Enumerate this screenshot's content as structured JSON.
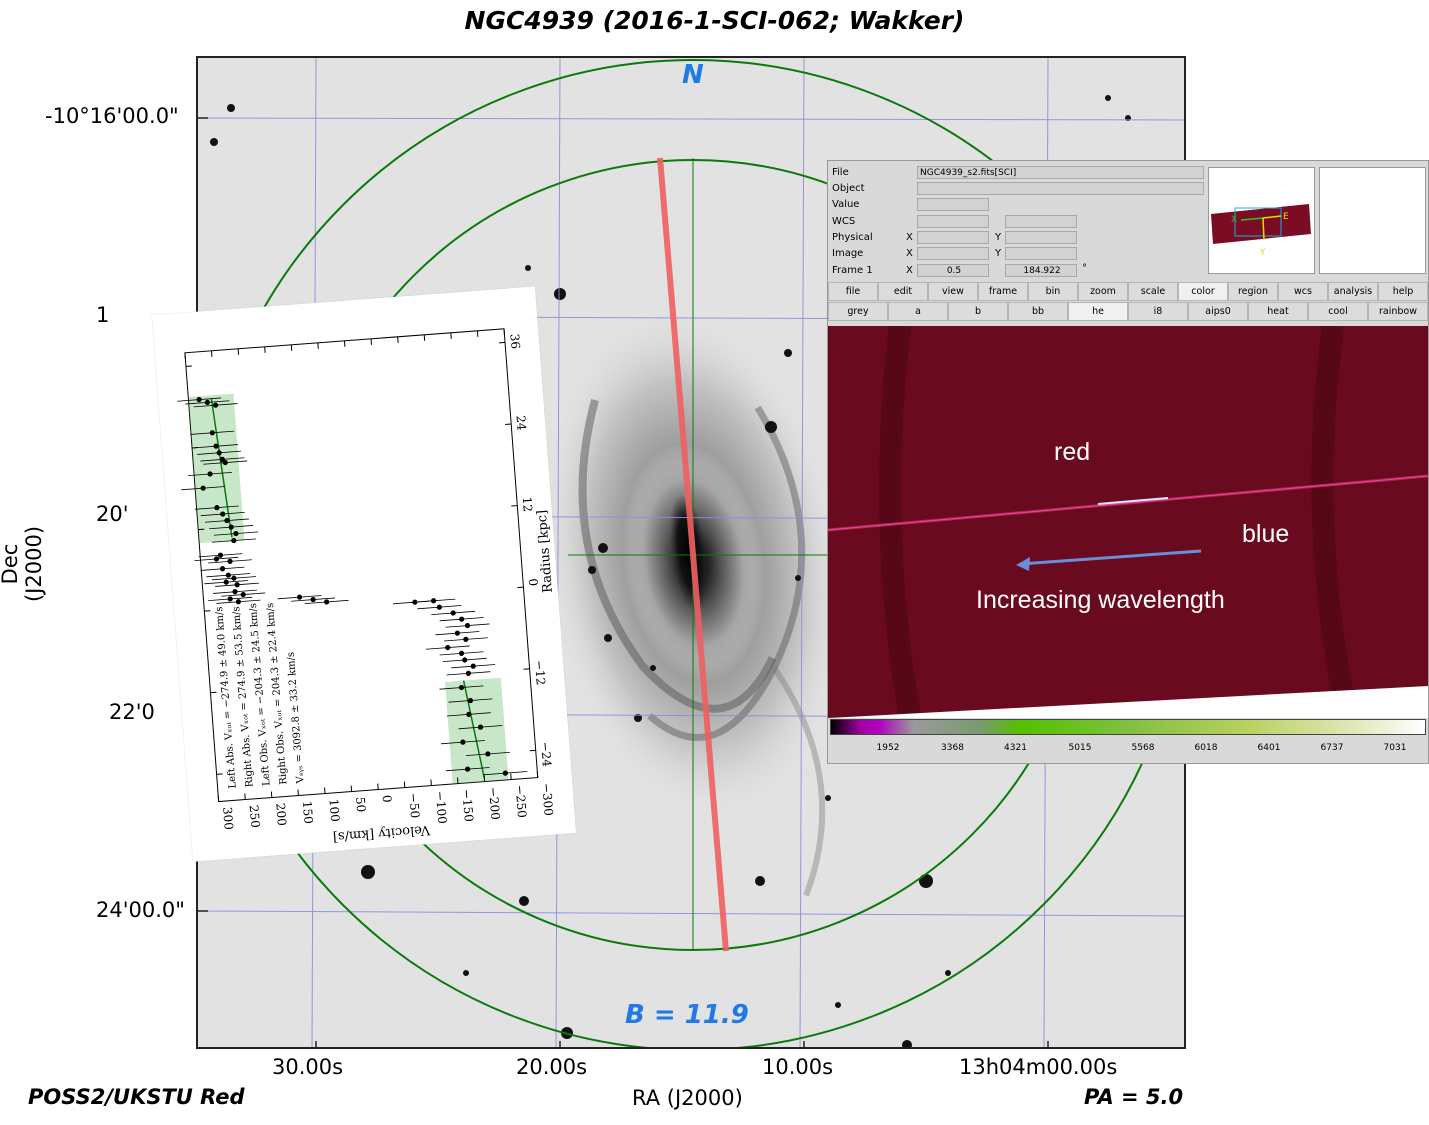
{
  "title": "NGC4939 (2016-1-SCI-062; Wakker)",
  "sky_image": {
    "north_label": "N",
    "b_label": "B = 11.9",
    "pa_label": "PA = 5.0",
    "survey_label": "POSS2/UKSTU Red",
    "ra_axis_label": "RA (J2000)",
    "dec_axis_label": "Dec (J2000)",
    "ra_ticks": [
      "30.00s",
      "20.00s",
      "10.00s",
      "13h04m00.00s"
    ],
    "dec_ticks": [
      "-10°16'00.0\"",
      "1",
      "20'",
      "22'0",
      "24'00.0\""
    ],
    "colors": {
      "circle": "#0a7a0a",
      "slit": "#f06060",
      "grid": "#8c8ce0",
      "label_blue": "#1e7be6"
    }
  },
  "ds9": {
    "labels": {
      "file": "File",
      "object": "Object",
      "value": "Value",
      "wcs": "WCS",
      "physical": "Physical",
      "image": "Image",
      "frame": "Frame 1"
    },
    "file_value": "NGC4939_s2.fits[SCI]",
    "x_label": "X",
    "y_label": "Y",
    "frame_x": "0.5",
    "frame_y": "184.922",
    "degree_sign": "°",
    "panner_labels": {
      "x": "X",
      "e": "E",
      "y": "Y"
    },
    "menu": [
      "file",
      "edit",
      "view",
      "frame",
      "bin",
      "zoom",
      "scale",
      "color",
      "region",
      "wcs",
      "analysis",
      "help"
    ],
    "menu_active": "color",
    "colormaps": [
      "grey",
      "a",
      "b",
      "bb",
      "he",
      "i8",
      "aips0",
      "heat",
      "cool",
      "rainbow"
    ],
    "colormap_active": "he",
    "image_annotations": {
      "red": "red",
      "blue": "blue",
      "increasing": "Increasing wavelength"
    },
    "colorbar_ticks": [
      "1952",
      "3368",
      "4321",
      "5015",
      "5568",
      "6018",
      "6401",
      "6737",
      "7031"
    ]
  },
  "rotation_plot": {
    "xlabel": "Velocity [km/s]",
    "ylabel": "Radius [kpc]",
    "x_ticks": [
      "300",
      "250",
      "200",
      "150",
      "100",
      "50",
      "0",
      "−50",
      "−100",
      "−150",
      "−200",
      "−250",
      "−300"
    ],
    "y_ticks": [
      "36",
      "24",
      "12",
      "0",
      "−12",
      "−24"
    ],
    "legend": [
      "Left Abs. Vₓₒₜ = −274.9 ± 49.0 km/s",
      "Right Abs. Vₓₒₜ = 274.9 ± 53.5 km/s",
      "Left Obs. Vₓₒₜ = −204.3 ± 24.5 km/s",
      "Right Obs. Vₓₒₜ = 204.3 ± 22.4 km/s",
      "Vₛᵧₛ = 3092.8 ± 33.2 km/s"
    ],
    "points": [
      [
        280,
        31
      ],
      [
        265,
        30.5
      ],
      [
        250,
        30
      ],
      [
        260,
        26
      ],
      [
        255,
        24
      ],
      [
        250,
        23
      ],
      [
        245,
        22
      ],
      [
        240,
        21.5
      ],
      [
        270,
        20
      ],
      [
        285,
        18
      ],
      [
        262,
        15
      ],
      [
        252,
        14
      ],
      [
        245,
        13
      ],
      [
        238,
        12
      ],
      [
        230,
        11
      ],
      [
        235,
        10
      ],
      [
        262,
        8
      ],
      [
        270,
        7.5
      ],
      [
        245,
        7
      ],
      [
        260,
        6
      ],
      [
        250,
        5
      ],
      [
        240,
        4.5
      ],
      [
        255,
        4
      ],
      [
        235,
        3.5
      ],
      [
        240,
        2.5
      ],
      [
        225,
        2
      ],
      [
        250,
        1.5
      ],
      [
        235,
        1
      ],
      [
        120,
        1
      ],
      [
        95,
        0.5
      ],
      [
        70,
        0
      ],
      [
        -95,
        -1
      ],
      [
        -130,
        -1
      ],
      [
        -140,
        -2
      ],
      [
        -165,
        -3
      ],
      [
        -180,
        -4
      ],
      [
        -190,
        -5
      ],
      [
        -170,
        -6
      ],
      [
        -185,
        -7
      ],
      [
        -150,
        -8
      ],
      [
        -175,
        -9
      ],
      [
        -180,
        -10
      ],
      [
        -195,
        -11
      ],
      [
        -185,
        -12
      ],
      [
        -170,
        -14
      ],
      [
        -185,
        -16
      ],
      [
        -180,
        -18
      ],
      [
        -200,
        -20
      ],
      [
        -165,
        -22
      ],
      [
        -210,
        -24
      ],
      [
        -170,
        -26
      ],
      [
        -240,
        -27
      ]
    ]
  }
}
